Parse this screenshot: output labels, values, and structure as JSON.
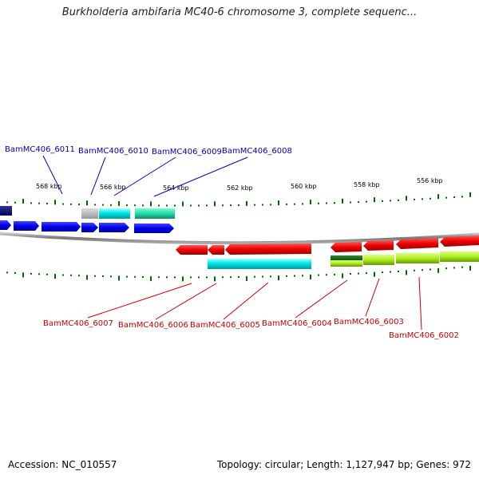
{
  "title": "Burkholderia ambifaria MC40-6 chromosome 3, complete sequenc...",
  "accession": "Accession: NC_010557",
  "summary": "Topology: circular; Length: 1,127,947 bp; Genes: 972",
  "ruler_labels": [
    "568 kbp",
    "566 kbp",
    "564 kbp",
    "562 kbp",
    "560 kbp",
    "558 kbp",
    "556 kbp"
  ],
  "genes_top": [
    "BamMC406_6011",
    "BamMC406_6010",
    "BamMC406_6009",
    "BamMC406_6008"
  ],
  "genes_bottom": [
    "BamMC406_6007",
    "BamMC406_6006",
    "BamMC406_6005",
    "BamMC406_6004",
    "BamMC406_6003",
    "BamMC406_6002"
  ],
  "colors": {
    "forward_label": "#0000bb",
    "reverse_label": "#cc0000",
    "forward_gene": "#0000ee",
    "reverse_gene": "#ee0000",
    "cyan": "#00eeee",
    "teal": "#22ddaa",
    "lime": "#aaee22",
    "tick": "#006600",
    "backbone": "#888888"
  }
}
